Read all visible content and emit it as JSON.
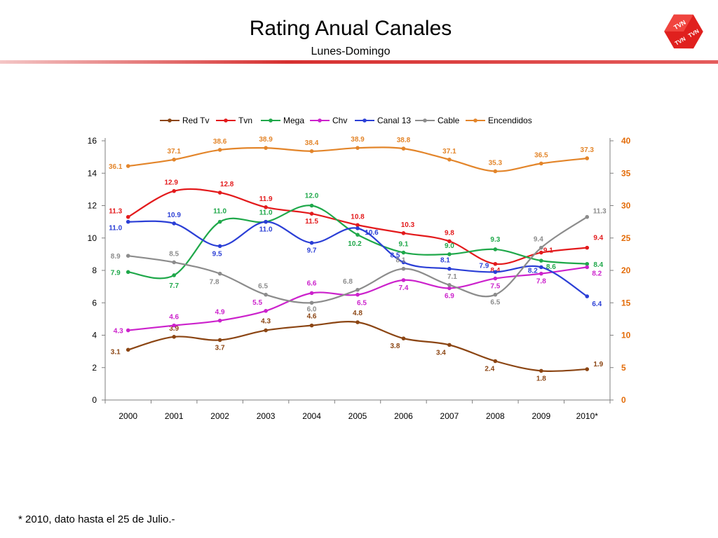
{
  "slide": {
    "title": "Rating Anual Canales",
    "subtitle": "Lunes-Domingo",
    "footnote": "* 2010, dato hasta el 25 de Julio.-",
    "logo_texts": [
      "TVN",
      "TVN",
      "TVN"
    ]
  },
  "chart_data": {
    "type": "line",
    "categories": [
      "2000",
      "2001",
      "2002",
      "2003",
      "2004",
      "2005",
      "2006",
      "2007",
      "2008",
      "2009",
      "2010*"
    ],
    "y_left": {
      "range": [
        0,
        16
      ],
      "ticks": [
        "0",
        "2",
        "4",
        "6",
        "8",
        "10",
        "12",
        "14",
        "16"
      ]
    },
    "y_right": {
      "range": [
        0,
        40
      ],
      "ticks": [
        "0",
        "5",
        "10",
        "15",
        "20",
        "25",
        "30",
        "35",
        "40"
      ],
      "color": "#e36c09"
    },
    "grid": false,
    "legend_position": "top",
    "series": [
      {
        "name": "Red Tv",
        "color": "#8b4513",
        "axis": "left",
        "values": [
          3.1,
          3.9,
          3.7,
          4.3,
          4.6,
          4.8,
          3.8,
          3.4,
          2.4,
          1.8,
          1.9
        ],
        "labels": [
          "3.1",
          "3.9",
          "3.7",
          "4.3",
          "4.6",
          "4.8",
          "3.8",
          "3.4",
          "2.4",
          "1.8",
          "1.9"
        ]
      },
      {
        "name": "Tvn",
        "color": "#e31a1c",
        "axis": "left",
        "values": [
          11.3,
          12.9,
          12.8,
          11.9,
          11.5,
          10.8,
          10.3,
          9.8,
          8.4,
          9.1,
          9.4
        ],
        "labels": [
          "11.3",
          "12.9",
          "12.8",
          "11.9",
          "11.5",
          "10.8",
          "10.3",
          "9.8",
          "8.4",
          "9.1",
          "9.4"
        ]
      },
      {
        "name": "Mega",
        "color": "#1fa84a",
        "axis": "left",
        "values": [
          7.9,
          7.7,
          11.0,
          11.0,
          12.0,
          10.2,
          9.1,
          9.0,
          9.3,
          8.6,
          8.4
        ],
        "labels": [
          "7.9",
          "7.7",
          "11.0",
          "11.0",
          "12.0",
          "10.2",
          "9.1",
          "9.0",
          "9.3",
          "8.6",
          "8.4"
        ]
      },
      {
        "name": "Chv",
        "color": "#cc22cc",
        "axis": "left",
        "values": [
          4.3,
          4.6,
          4.9,
          5.5,
          6.6,
          6.5,
          7.4,
          6.9,
          7.5,
          7.8,
          8.2
        ],
        "labels": [
          "4.3",
          "4.6",
          "4.9",
          "5.5",
          "6.6",
          "6.5",
          "7.4",
          "6.9",
          "7.5",
          "7.8",
          "8.2"
        ]
      },
      {
        "name": "Canal 13",
        "color": "#2b3fd6",
        "axis": "left",
        "values": [
          11.0,
          10.9,
          9.5,
          11.0,
          9.7,
          10.6,
          8.5,
          8.1,
          7.9,
          8.2,
          6.4
        ],
        "labels": [
          "11.0",
          "10.9",
          "9.5",
          "11.0",
          "9.7",
          "10.6",
          "8.5",
          "8.1",
          "7.9",
          "8.2",
          "6.4"
        ]
      },
      {
        "name": "Cable",
        "color": "#8c8c8c",
        "axis": "left",
        "values": [
          8.9,
          8.5,
          7.8,
          6.5,
          6.0,
          6.8,
          8.1,
          7.1,
          6.5,
          9.4,
          11.3
        ],
        "labels": [
          "8.9",
          "8.5",
          "7.8",
          "6.5",
          "6.0",
          "6.8",
          "8.1",
          "7.1",
          "6.5",
          "9.4",
          "11.3"
        ]
      },
      {
        "name": "Encendidos",
        "color": "#e3852a",
        "axis": "right",
        "values": [
          36.1,
          37.1,
          38.6,
          38.9,
          38.4,
          38.9,
          38.8,
          37.1,
          35.3,
          36.5,
          37.3
        ],
        "labels": [
          "36.1",
          "37.1",
          "38.6",
          "38.9",
          "38.4",
          "38.9",
          "38.8",
          "37.1",
          "35.3",
          "36.5",
          "37.3"
        ]
      }
    ]
  }
}
